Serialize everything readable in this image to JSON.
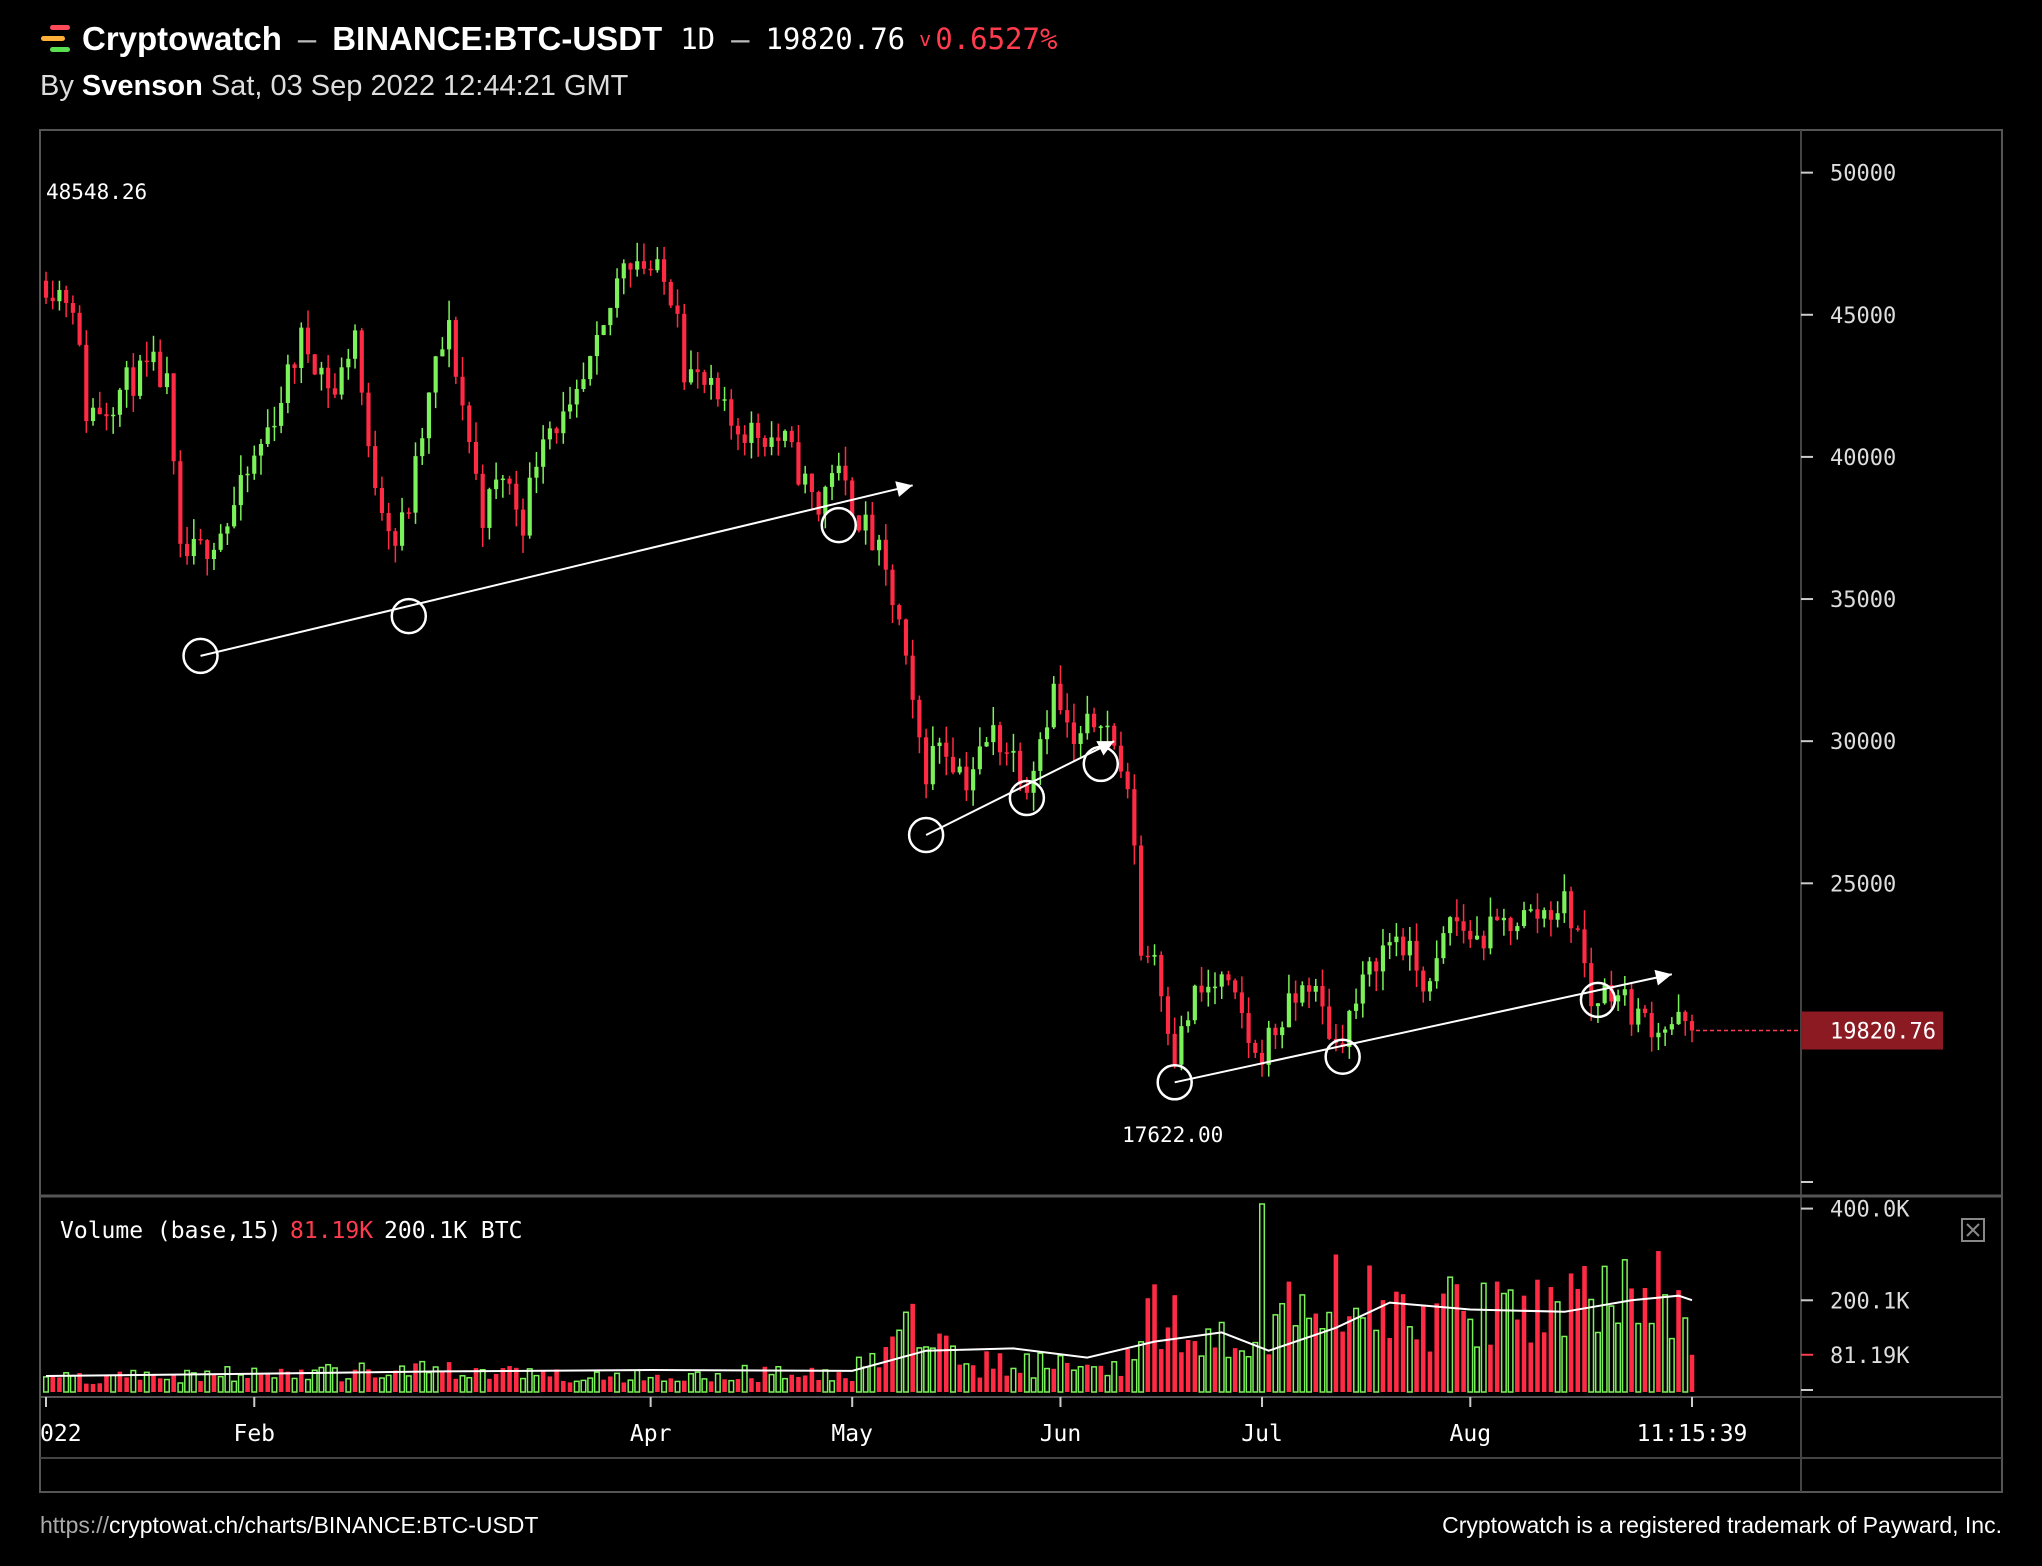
{
  "header": {
    "brand": "Cryptowatch",
    "separator": "–",
    "pair": "BINANCE:BTC-USDT",
    "timeframe": "1D",
    "price": "19820.76",
    "change_arrow": "v",
    "change": "0.6527%"
  },
  "subheader": {
    "by": "By",
    "author": "Svenson",
    "datetime": "Sat, 03 Sep 2022 12:44:21 GMT"
  },
  "footer": {
    "url_prefix": "https://",
    "url": "cryptowat.ch/charts/BINANCE:BTC-USDT",
    "trademark": "Cryptowatch is a registered trademark of Payward, Inc."
  },
  "colors": {
    "up": "#7cf25a",
    "down": "#ff2a44",
    "accent_red": "#ff3b4e",
    "price_tag_bg": "#8b1a22",
    "grid_line": "#4a4a4a",
    "logo_icon": [
      "#ff4a5a",
      "#ffb03a",
      "#58e050"
    ]
  },
  "icons": {
    "logo": "cryptowatch-logo-icon",
    "close": "close-x-icon"
  },
  "chart_data": [
    {
      "type": "candlestick",
      "title": "",
      "ylim": [
        14000,
        51500
      ],
      "y_ticks": [
        50000,
        45000,
        40000,
        35000,
        30000,
        25000
      ],
      "y_tick_labels": [
        "50000",
        "45000",
        "40000",
        "35000",
        "30000",
        "25000"
      ],
      "x_tick_labels": [
        "022",
        "Feb",
        "Apr",
        "May",
        "Jun",
        "Jul",
        "Aug",
        "11:15:39"
      ],
      "x_tick_dates": [
        "2022-01-01",
        "2022-02-01",
        "2022-04-01",
        "2022-05-01",
        "2022-06-01",
        "2022-07-01",
        "2022-08-01",
        "2022-09-03"
      ],
      "date_range": [
        "2022-01-01",
        "2022-09-03"
      ],
      "high_marker": {
        "label": "48548.26",
        "value": 48548.26
      },
      "low_marker": {
        "label": "17622.00",
        "value": 17622.0,
        "date": "2022-06-18"
      },
      "last_price": {
        "label": "19820.76",
        "value": 19820.76
      },
      "close_path": [
        [
          "2022-01-01",
          46200
        ],
        [
          "2022-01-05",
          45500
        ],
        [
          "2022-01-07",
          41600
        ],
        [
          "2022-01-10",
          41800
        ],
        [
          "2022-01-13",
          42600
        ],
        [
          "2022-01-17",
          43100
        ],
        [
          "2022-01-19",
          42400
        ],
        [
          "2022-01-21",
          36400
        ],
        [
          "2022-01-24",
          36700
        ],
        [
          "2022-01-28",
          37700
        ],
        [
          "2022-02-04",
          41500
        ],
        [
          "2022-02-08",
          44100
        ],
        [
          "2022-02-10",
          43500
        ],
        [
          "2022-02-13",
          42200
        ],
        [
          "2022-02-16",
          44500
        ],
        [
          "2022-02-18",
          40000
        ],
        [
          "2022-02-22",
          37000
        ],
        [
          "2022-02-24",
          38300
        ],
        [
          "2022-02-28",
          43200
        ],
        [
          "2022-03-02",
          44400
        ],
        [
          "2022-03-07",
          38000
        ],
        [
          "2022-03-10",
          39400
        ],
        [
          "2022-03-13",
          37800
        ],
        [
          "2022-03-16",
          41100
        ],
        [
          "2022-03-20",
          41300
        ],
        [
          "2022-03-25",
          44300
        ],
        [
          "2022-03-28",
          47100
        ],
        [
          "2022-03-30",
          47000
        ],
        [
          "2022-04-02",
          46400
        ],
        [
          "2022-04-05",
          45500
        ],
        [
          "2022-04-06",
          43200
        ],
        [
          "2022-04-10",
          42200
        ],
        [
          "2022-04-13",
          41100
        ],
        [
          "2022-04-18",
          40800
        ],
        [
          "2022-04-21",
          40500
        ],
        [
          "2022-04-26",
          38100
        ],
        [
          "2022-04-28",
          39700
        ],
        [
          "2022-05-01",
          38400
        ],
        [
          "2022-05-05",
          36500
        ],
        [
          "2022-05-08",
          34100
        ],
        [
          "2022-05-10",
          31000
        ],
        [
          "2022-05-12",
          29000
        ],
        [
          "2022-05-14",
          30100
        ],
        [
          "2022-05-18",
          28700
        ],
        [
          "2022-05-22",
          30300
        ],
        [
          "2022-05-25",
          29500
        ],
        [
          "2022-05-27",
          28600
        ],
        [
          "2022-05-31",
          31800
        ],
        [
          "2022-06-03",
          29700
        ],
        [
          "2022-06-07",
          31100
        ],
        [
          "2022-06-10",
          29100
        ],
        [
          "2022-06-12",
          26600
        ],
        [
          "2022-06-13",
          22500
        ],
        [
          "2022-06-15",
          22600
        ],
        [
          "2022-06-18",
          19000
        ],
        [
          "2022-06-21",
          21000
        ],
        [
          "2022-06-25",
          21500
        ],
        [
          "2022-06-28",
          20300
        ],
        [
          "2022-06-30",
          18800
        ],
        [
          "2022-07-04",
          20200
        ],
        [
          "2022-07-08",
          21600
        ],
        [
          "2022-07-12",
          19300
        ],
        [
          "2022-07-15",
          20800
        ],
        [
          "2022-07-18",
          22400
        ],
        [
          "2022-07-21",
          23200
        ],
        [
          "2022-07-26",
          21200
        ],
        [
          "2022-07-29",
          23800
        ],
        [
          "2022-08-02",
          23000
        ],
        [
          "2022-08-08",
          23800
        ],
        [
          "2022-08-11",
          23900
        ],
        [
          "2022-08-15",
          24300
        ],
        [
          "2022-08-17",
          23300
        ],
        [
          "2022-08-19",
          20800
        ],
        [
          "2022-08-22",
          21400
        ],
        [
          "2022-08-26",
          20300
        ],
        [
          "2022-08-29",
          20000
        ],
        [
          "2022-09-01",
          20100
        ],
        [
          "2022-09-03",
          19820.76
        ]
      ],
      "trend_lines": [
        {
          "from": [
            "2022-01-24",
            33000
          ],
          "to": [
            "2022-05-10",
            39000
          ],
          "arrow": true
        },
        {
          "from": [
            "2022-05-12",
            26700
          ],
          "to": [
            "2022-06-09",
            30000
          ],
          "arrow": true
        },
        {
          "from": [
            "2022-06-18",
            18000
          ],
          "to": [
            "2022-08-31",
            21800
          ],
          "arrow": true
        }
      ],
      "touch_points": [
        [
          "2022-01-24",
          33000
        ],
        [
          "2022-02-24",
          34400
        ],
        [
          "2022-04-29",
          37600
        ],
        [
          "2022-05-12",
          26700
        ],
        [
          "2022-05-27",
          28000
        ],
        [
          "2022-06-07",
          29200
        ],
        [
          "2022-06-18",
          18000
        ],
        [
          "2022-07-13",
          18900
        ],
        [
          "2022-08-20",
          20900
        ]
      ]
    },
    {
      "type": "bar",
      "title": "Volume (base,15)",
      "last_volume": "81.19K",
      "ma_volume": "200.1K BTC",
      "ylim": [
        0,
        410000
      ],
      "y_ticks": [
        400000,
        200000,
        81190
      ],
      "y_tick_labels": [
        "400.0K",
        "200.1K",
        "81.19K"
      ],
      "volume_path": [
        [
          "2022-01-01",
          35000
        ],
        [
          "2022-01-20",
          40000
        ],
        [
          "2022-02-10",
          45000
        ],
        [
          "2022-03-01",
          50000
        ],
        [
          "2022-04-01",
          40000
        ],
        [
          "2022-04-25",
          45000
        ],
        [
          "2022-05-01",
          50000
        ],
        [
          "2022-05-09",
          150000
        ],
        [
          "2022-05-13",
          120000
        ],
        [
          "2022-05-20",
          70000
        ],
        [
          "2022-06-01",
          65000
        ],
        [
          "2022-06-10",
          70000
        ],
        [
          "2022-06-13",
          170000
        ],
        [
          "2022-06-18",
          200000
        ],
        [
          "2022-06-24",
          130000
        ],
        [
          "2022-07-01",
          85000
        ],
        [
          "2022-07-05",
          180000
        ],
        [
          "2022-07-12",
          250000
        ],
        [
          "2022-07-20",
          180000
        ],
        [
          "2022-08-01",
          190000
        ],
        [
          "2022-08-15",
          200000
        ],
        [
          "2022-08-20",
          230000
        ],
        [
          "2022-08-31",
          250000
        ],
        [
          "2022-09-02",
          240000
        ],
        [
          "2022-09-03",
          81190
        ]
      ],
      "ma_path": [
        [
          "2022-01-01",
          35000
        ],
        [
          "2022-02-01",
          40000
        ],
        [
          "2022-03-01",
          45000
        ],
        [
          "2022-04-01",
          48000
        ],
        [
          "2022-05-01",
          46000
        ],
        [
          "2022-05-12",
          90000
        ],
        [
          "2022-05-25",
          95000
        ],
        [
          "2022-06-05",
          75000
        ],
        [
          "2022-06-15",
          110000
        ],
        [
          "2022-06-25",
          130000
        ],
        [
          "2022-07-02",
          90000
        ],
        [
          "2022-07-12",
          140000
        ],
        [
          "2022-07-20",
          195000
        ],
        [
          "2022-08-01",
          180000
        ],
        [
          "2022-08-15",
          175000
        ],
        [
          "2022-08-25",
          200000
        ],
        [
          "2022-09-01",
          210000
        ],
        [
          "2022-09-03",
          200100
        ]
      ],
      "volume_spikes": [
        [
          "2022-07-01",
          410000
        ]
      ]
    }
  ]
}
